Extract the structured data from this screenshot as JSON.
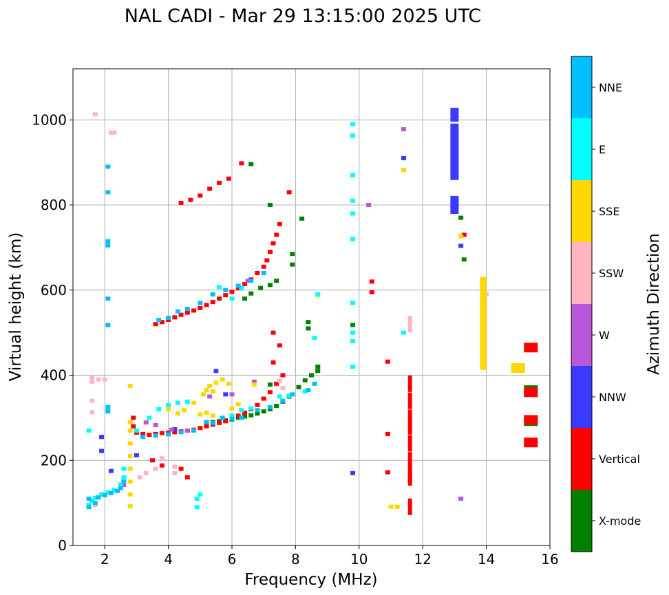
{
  "chart_data": {
    "type": "scatter",
    "title": "NAL CADI - Mar 29 13:15:00 2025 UTC",
    "xlabel": "Frequency (MHz)",
    "ylabel": "Virtual height (km)",
    "xlim": [
      1,
      16
    ],
    "ylim": [
      0,
      1120
    ],
    "xticks": [
      2,
      4,
      6,
      8,
      10,
      12,
      14,
      16
    ],
    "yticks": [
      0,
      200,
      400,
      600,
      800,
      1000
    ],
    "grid": true,
    "colorbar": {
      "label": "Azimuth Direction",
      "categories": [
        {
          "name": "X-mode",
          "color": "#008000"
        },
        {
          "name": "Vertical",
          "color": "#ff0000"
        },
        {
          "name": "NNW",
          "color": "#3a3aff"
        },
        {
          "name": "W",
          "color": "#b857d8"
        },
        {
          "name": "SSW",
          "color": "#ffb6c1"
        },
        {
          "name": "SSE",
          "color": "#ffd700"
        },
        {
          "name": "E",
          "color": "#00ffff"
        },
        {
          "name": "NNE",
          "color": "#00bfff"
        }
      ]
    },
    "series": [
      {
        "name": "X-mode",
        "points": [
          [
            5.2,
            288
          ],
          [
            5.4,
            290
          ],
          [
            5.6,
            292
          ],
          [
            5.8,
            294
          ],
          [
            6.0,
            296
          ],
          [
            6.2,
            300
          ],
          [
            6.4,
            303
          ],
          [
            6.6,
            306
          ],
          [
            6.8,
            310
          ],
          [
            7.0,
            315
          ],
          [
            7.2,
            320
          ],
          [
            7.4,
            328
          ],
          [
            7.6,
            338
          ],
          [
            7.8,
            350
          ],
          [
            8.1,
            372
          ],
          [
            8.3,
            388
          ],
          [
            8.5,
            400
          ],
          [
            8.7,
            410
          ],
          [
            8.7,
            420
          ],
          [
            8.4,
            525
          ],
          [
            8.4,
            510
          ],
          [
            6.4,
            580
          ],
          [
            6.6,
            592
          ],
          [
            6.9,
            605
          ],
          [
            7.2,
            612
          ],
          [
            7.4,
            622
          ],
          [
            7.9,
            685
          ],
          [
            7.9,
            660
          ],
          [
            7.2,
            800
          ],
          [
            8.2,
            768
          ],
          [
            6.6,
            896
          ],
          [
            7.2,
            378
          ],
          [
            13.3,
            672
          ],
          [
            13.2,
            770
          ],
          [
            15.4,
            365
          ],
          [
            15.4,
            292
          ],
          [
            9.8,
            518
          ]
        ]
      },
      {
        "name": "Vertical",
        "points": [
          [
            3.0,
            265
          ],
          [
            3.2,
            262
          ],
          [
            3.4,
            260
          ],
          [
            3.6,
            262
          ],
          [
            3.8,
            264
          ],
          [
            4.0,
            265
          ],
          [
            4.2,
            266
          ],
          [
            4.4,
            268
          ],
          [
            4.6,
            270
          ],
          [
            4.8,
            272
          ],
          [
            5.0,
            276
          ],
          [
            5.2,
            280
          ],
          [
            5.4,
            284
          ],
          [
            5.6,
            288
          ],
          [
            5.8,
            292
          ],
          [
            6.0,
            298
          ],
          [
            6.2,
            305
          ],
          [
            6.4,
            312
          ],
          [
            6.6,
            320
          ],
          [
            6.8,
            330
          ],
          [
            7.0,
            345
          ],
          [
            7.2,
            360
          ],
          [
            7.4,
            380
          ],
          [
            7.6,
            400
          ],
          [
            7.3,
            430
          ],
          [
            7.5,
            470
          ],
          [
            7.3,
            500
          ],
          [
            3.6,
            520
          ],
          [
            3.8,
            525
          ],
          [
            4.0,
            530
          ],
          [
            4.2,
            536
          ],
          [
            4.4,
            542
          ],
          [
            4.6,
            547
          ],
          [
            4.8,
            552
          ],
          [
            5.0,
            558
          ],
          [
            5.2,
            565
          ],
          [
            5.4,
            572
          ],
          [
            5.6,
            580
          ],
          [
            5.8,
            588
          ],
          [
            6.0,
            596
          ],
          [
            6.2,
            604
          ],
          [
            6.4,
            614
          ],
          [
            6.6,
            625
          ],
          [
            6.8,
            640
          ],
          [
            7.0,
            655
          ],
          [
            7.1,
            670
          ],
          [
            7.2,
            690
          ],
          [
            7.3,
            710
          ],
          [
            7.4,
            730
          ],
          [
            7.5,
            755
          ],
          [
            4.4,
            805
          ],
          [
            4.7,
            812
          ],
          [
            5.0,
            822
          ],
          [
            5.3,
            838
          ],
          [
            5.6,
            852
          ],
          [
            5.9,
            862
          ],
          [
            6.3,
            898
          ],
          [
            7.8,
            830
          ],
          [
            2.9,
            300
          ],
          [
            2.9,
            280
          ],
          [
            3.5,
            200
          ],
          [
            3.8,
            188
          ],
          [
            4.4,
            180
          ],
          [
            4.6,
            160
          ],
          [
            10.9,
            432
          ],
          [
            10.9,
            172
          ],
          [
            10.9,
            262
          ],
          [
            10.4,
            595
          ],
          [
            10.4,
            620
          ],
          [
            11.6,
            380
          ],
          [
            11.6,
            340
          ],
          [
            11.6,
            300
          ],
          [
            11.6,
            280
          ],
          [
            11.6,
            240
          ],
          [
            11.6,
            200
          ],
          [
            11.6,
            170
          ],
          [
            11.6,
            160
          ],
          [
            11.6,
            91
          ],
          [
            13.3,
            730
          ],
          [
            15.4,
            465
          ],
          [
            15.4,
            360
          ],
          [
            15.4,
            295
          ],
          [
            15.4,
            242
          ]
        ]
      },
      {
        "name": "NNW",
        "points": [
          [
            13.0,
            1012
          ],
          [
            13.0,
            975
          ],
          [
            13.0,
            955
          ],
          [
            13.0,
            935
          ],
          [
            13.0,
            915
          ],
          [
            13.0,
            895
          ],
          [
            13.0,
            875
          ],
          [
            13.0,
            805
          ],
          [
            13.0,
            795
          ],
          [
            1.9,
            255
          ],
          [
            1.9,
            222
          ],
          [
            2.2,
            175
          ],
          [
            3.0,
            212
          ],
          [
            4.2,
            273
          ],
          [
            5.8,
            355
          ],
          [
            5.5,
            410
          ],
          [
            11.4,
            910
          ],
          [
            13.2,
            704
          ],
          [
            9.8,
            170
          ]
        ]
      },
      {
        "name": "W",
        "points": [
          [
            3.3,
            289
          ],
          [
            3.6,
            283
          ],
          [
            4.1,
            272
          ],
          [
            4.6,
            270
          ],
          [
            6.0,
            355
          ],
          [
            6.7,
            385
          ],
          [
            11.4,
            978
          ],
          [
            13.2,
            110
          ],
          [
            13.9,
            480
          ],
          [
            6.5,
            622
          ],
          [
            2.6,
            142
          ],
          [
            10.3,
            800
          ],
          [
            5.3,
            350
          ]
        ]
      },
      {
        "name": "SSW",
        "points": [
          [
            1.6,
            395
          ],
          [
            1.6,
            385
          ],
          [
            1.6,
            340
          ],
          [
            1.6,
            313
          ],
          [
            1.8,
            390
          ],
          [
            2.0,
            390
          ],
          [
            2.3,
            130
          ],
          [
            2.5,
            145
          ],
          [
            3.1,
            160
          ],
          [
            3.3,
            170
          ],
          [
            3.6,
            180
          ],
          [
            3.8,
            205
          ],
          [
            4.2,
            185
          ],
          [
            4.2,
            170
          ],
          [
            7.5,
            387
          ],
          [
            7.6,
            370
          ],
          [
            1.7,
            1013
          ],
          [
            2.2,
            970
          ],
          [
            11.6,
            520
          ],
          [
            13.9,
            535
          ],
          [
            13.9,
            560
          ],
          [
            14.0,
            590
          ],
          [
            1.7,
            95
          ],
          [
            2.3,
            970
          ]
        ]
      },
      {
        "name": "SSE",
        "points": [
          [
            2.8,
            92
          ],
          [
            2.8,
            120
          ],
          [
            2.8,
            150
          ],
          [
            2.8,
            180
          ],
          [
            2.8,
            210
          ],
          [
            2.8,
            240
          ],
          [
            2.8,
            270
          ],
          [
            2.8,
            290
          ],
          [
            2.8,
            375
          ],
          [
            5.2,
            365
          ],
          [
            5.3,
            375
          ],
          [
            5.5,
            382
          ],
          [
            5.7,
            390
          ],
          [
            5.9,
            380
          ],
          [
            5.4,
            362
          ],
          [
            5.1,
            355
          ],
          [
            4.8,
            335
          ],
          [
            4.5,
            318
          ],
          [
            4.3,
            310
          ],
          [
            4.0,
            320
          ],
          [
            5.0,
            308
          ],
          [
            5.2,
            312
          ],
          [
            5.4,
            305
          ],
          [
            6.0,
            322
          ],
          [
            6.2,
            332
          ],
          [
            6.7,
            378
          ],
          [
            8.7,
            588
          ],
          [
            11.4,
            882
          ],
          [
            11.2,
            91
          ],
          [
            11.0,
            91
          ],
          [
            13.9,
            612
          ],
          [
            13.9,
            603
          ],
          [
            13.9,
            590
          ],
          [
            13.9,
            575
          ],
          [
            13.9,
            560
          ],
          [
            13.9,
            545
          ],
          [
            13.9,
            520
          ],
          [
            13.9,
            505
          ],
          [
            13.9,
            490
          ],
          [
            13.9,
            475
          ],
          [
            13.9,
            460
          ],
          [
            13.9,
            445
          ],
          [
            13.9,
            432
          ],
          [
            15.0,
            417
          ],
          [
            13.2,
            726
          ]
        ]
      },
      {
        "name": "E",
        "points": [
          [
            1.5,
            95
          ],
          [
            1.6,
            105
          ],
          [
            1.7,
            112
          ],
          [
            1.9,
            120
          ],
          [
            2.1,
            125
          ],
          [
            2.3,
            130
          ],
          [
            2.5,
            142
          ],
          [
            2.6,
            160
          ],
          [
            2.6,
            180
          ],
          [
            3.0,
            270
          ],
          [
            3.4,
            300
          ],
          [
            3.7,
            320
          ],
          [
            4.0,
            330
          ],
          [
            4.3,
            335
          ],
          [
            4.6,
            338
          ],
          [
            4.9,
            90
          ],
          [
            4.9,
            110
          ],
          [
            5.0,
            120
          ],
          [
            6.0,
            305
          ],
          [
            6.3,
            318
          ],
          [
            6.6,
            322
          ],
          [
            7.5,
            350
          ],
          [
            7.8,
            352
          ],
          [
            8.3,
            362
          ],
          [
            8.6,
            488
          ],
          [
            8.7,
            590
          ],
          [
            9.8,
            420
          ],
          [
            9.8,
            480
          ],
          [
            9.8,
            500
          ],
          [
            9.8,
            570
          ],
          [
            9.8,
            720
          ],
          [
            9.8,
            780
          ],
          [
            9.8,
            810
          ],
          [
            9.8,
            870
          ],
          [
            9.8,
            963
          ],
          [
            9.8,
            990
          ],
          [
            5.6,
            607
          ],
          [
            6.0,
            580
          ],
          [
            6.3,
            605
          ],
          [
            1.5,
            270
          ],
          [
            11.4,
            500
          ]
        ]
      },
      {
        "name": "NNE",
        "points": [
          [
            1.5,
            90
          ],
          [
            1.7,
            100
          ],
          [
            1.8,
            113
          ],
          [
            2.0,
            118
          ],
          [
            2.2,
            123
          ],
          [
            2.4,
            128
          ],
          [
            2.5,
            135
          ],
          [
            2.6,
            150
          ],
          [
            3.2,
            255
          ],
          [
            3.6,
            258
          ],
          [
            4.0,
            261
          ],
          [
            4.4,
            266
          ],
          [
            4.8,
            270
          ],
          [
            5.2,
            290
          ],
          [
            5.4,
            288
          ],
          [
            5.7,
            300
          ],
          [
            6.0,
            298
          ],
          [
            6.3,
            300
          ],
          [
            6.8,
            318
          ],
          [
            7.2,
            325
          ],
          [
            7.6,
            340
          ],
          [
            7.9,
            355
          ],
          [
            8.4,
            365
          ],
          [
            8.6,
            380
          ],
          [
            3.7,
            530
          ],
          [
            4.0,
            535
          ],
          [
            4.3,
            550
          ],
          [
            4.6,
            556
          ],
          [
            5.0,
            570
          ],
          [
            5.4,
            590
          ],
          [
            5.8,
            600
          ],
          [
            6.2,
            610
          ],
          [
            6.6,
            622
          ],
          [
            7.0,
            640
          ],
          [
            2.1,
            890
          ],
          [
            2.1,
            830
          ],
          [
            2.1,
            715
          ],
          [
            2.1,
            705
          ],
          [
            2.1,
            580
          ],
          [
            2.1,
            518
          ],
          [
            2.1,
            325
          ],
          [
            2.1,
            315
          ],
          [
            1.5,
            110
          ]
        ]
      }
    ]
  }
}
